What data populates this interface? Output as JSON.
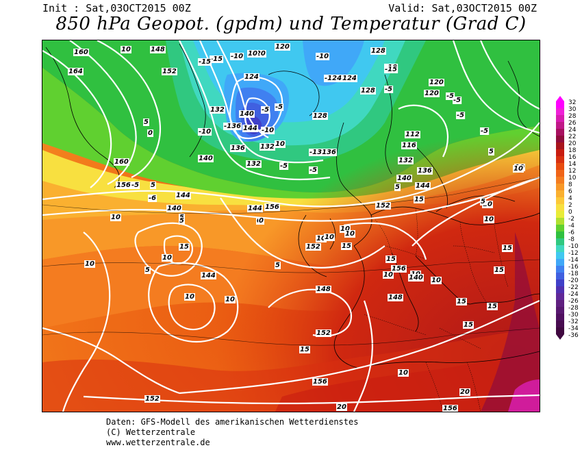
{
  "header": {
    "init": "Init : Sat,03OCT2015 00Z",
    "valid": "Valid: Sat,03OCT2015 00Z",
    "title": "850 hPa Geopot. (gpdm) und Temperatur (Grad C)"
  },
  "legend": {
    "values": [
      "32",
      "30",
      "28",
      "26",
      "24",
      "22",
      "20",
      "18",
      "16",
      "14",
      "12",
      "10",
      "8",
      "6",
      "4",
      "2",
      "0",
      "-2",
      "-4",
      "-6",
      "-8",
      "-10",
      "-12",
      "-14",
      "-16",
      "-18",
      "-20",
      "-22",
      "-24",
      "-26",
      "-28",
      "-30",
      "-32",
      "-34",
      "-36"
    ],
    "colors": [
      "#ff00ff",
      "#f020d8",
      "#d81cb0",
      "#c01888",
      "#a81060",
      "#900c3c",
      "#a8141c",
      "#c81c10",
      "#d83010",
      "#e84c10",
      "#f06418",
      "#f47c20",
      "#f89828",
      "#fab030",
      "#fcc838",
      "#f8e040",
      "#e8ec38",
      "#b0e030",
      "#60d030",
      "#30c040",
      "#30c880",
      "#40d8c0",
      "#40c8f0",
      "#40a8f8",
      "#4080f0",
      "#4060e0",
      "#4040c8",
      "#5030b0",
      "#602898",
      "#602080",
      "#581870",
      "#501060",
      "#480c50",
      "#400840"
    ]
  },
  "map": {
    "height_labels": [
      {
        "t": "160"
      },
      {
        "t": "164"
      },
      {
        "t": "148"
      },
      {
        "t": "152"
      },
      {
        "t": "-15"
      },
      {
        "t": "120"
      },
      {
        "t": "124"
      },
      {
        "t": "128"
      },
      {
        "t": "132"
      },
      {
        "t": "140"
      },
      {
        "t": "144"
      },
      {
        "t": "136"
      },
      {
        "t": "-10"
      },
      {
        "t": "-5"
      },
      {
        "t": "0"
      },
      {
        "t": "5"
      },
      {
        "t": "10"
      },
      {
        "t": "15"
      },
      {
        "t": "20"
      },
      {
        "t": "156"
      },
      {
        "t": "112"
      },
      {
        "t": "116"
      }
    ],
    "labels": [
      {
        "t": "160"
      },
      {
        "t": "10"
      },
      {
        "t": "148"
      },
      {
        "t": "-15"
      },
      {
        "t": "-10"
      },
      {
        "t": "120"
      },
      {
        "t": "120"
      },
      {
        "t": "128"
      },
      {
        "t": "164"
      },
      {
        "t": "152"
      },
      {
        "t": "-15"
      },
      {
        "t": "10"
      },
      {
        "t": "124"
      },
      {
        "t": "-10"
      },
      {
        "t": "-124"
      },
      {
        "t": "124"
      },
      {
        "t": "-10"
      },
      {
        "t": "128"
      },
      {
        "t": "-15"
      },
      {
        "t": "120"
      },
      {
        "t": "-5"
      },
      {
        "t": "120"
      },
      {
        "t": "-5"
      },
      {
        "t": "132"
      },
      {
        "t": "140"
      },
      {
        "t": "128"
      },
      {
        "t": "-5"
      },
      {
        "t": "-5"
      },
      {
        "t": "-5"
      },
      {
        "t": "-5"
      },
      {
        "t": "5"
      },
      {
        "t": "-10"
      },
      {
        "t": "-136"
      },
      {
        "t": "144"
      },
      {
        "t": "-10"
      },
      {
        "t": "0"
      },
      {
        "t": "112"
      },
      {
        "t": "-5"
      },
      {
        "t": "136"
      },
      {
        "t": "132"
      },
      {
        "t": "10"
      },
      {
        "t": "-13136"
      },
      {
        "t": "116"
      },
      {
        "t": "5"
      },
      {
        "t": "160"
      },
      {
        "t": "140"
      },
      {
        "t": "132"
      },
      {
        "t": "-5"
      },
      {
        "t": "-5"
      },
      {
        "t": "132"
      },
      {
        "t": "136"
      },
      {
        "t": "10"
      },
      {
        "t": "156"
      },
      {
        "t": "-5"
      },
      {
        "t": "5"
      },
      {
        "t": "-6"
      },
      {
        "t": "144"
      },
      {
        "t": "140"
      },
      {
        "t": "0"
      },
      {
        "t": "5"
      },
      {
        "t": "144"
      },
      {
        "t": "15"
      },
      {
        "t": "156"
      },
      {
        "t": "140"
      },
      {
        "t": "5"
      },
      {
        "t": "144"
      },
      {
        "t": "152"
      },
      {
        "t": "15"
      },
      {
        "t": "10"
      },
      {
        "t": "10"
      },
      {
        "t": "0"
      },
      {
        "t": "10"
      },
      {
        "t": "10"
      },
      {
        "t": "152"
      },
      {
        "t": "10"
      },
      {
        "t": "10"
      },
      {
        "t": "10"
      },
      {
        "t": "5"
      },
      {
        "t": "10"
      },
      {
        "t": "5"
      },
      {
        "t": "15"
      },
      {
        "t": "15"
      },
      {
        "t": "15"
      },
      {
        "t": "5"
      },
      {
        "t": "10"
      },
      {
        "t": "144"
      },
      {
        "t": "5"
      },
      {
        "t": "148"
      },
      {
        "t": "156"
      },
      {
        "t": "10"
      },
      {
        "t": "10"
      },
      {
        "t": "15"
      },
      {
        "t": "140"
      },
      {
        "t": "10"
      },
      {
        "t": "10"
      },
      {
        "t": "10"
      },
      {
        "t": "10"
      },
      {
        "t": "152"
      },
      {
        "t": "15"
      },
      {
        "t": "15"
      },
      {
        "t": "148"
      },
      {
        "t": "15"
      },
      {
        "t": "15"
      },
      {
        "t": "156"
      },
      {
        "t": "10"
      },
      {
        "t": "152"
      },
      {
        "t": "20"
      },
      {
        "t": "20"
      },
      {
        "t": "156"
      }
    ]
  },
  "footer": {
    "line1": "Daten: GFS-Modell des amerikanischen Wetterdienstes",
    "line2": "(C) Wetterzentrale",
    "line3": "www.wetterzentrale.de"
  }
}
